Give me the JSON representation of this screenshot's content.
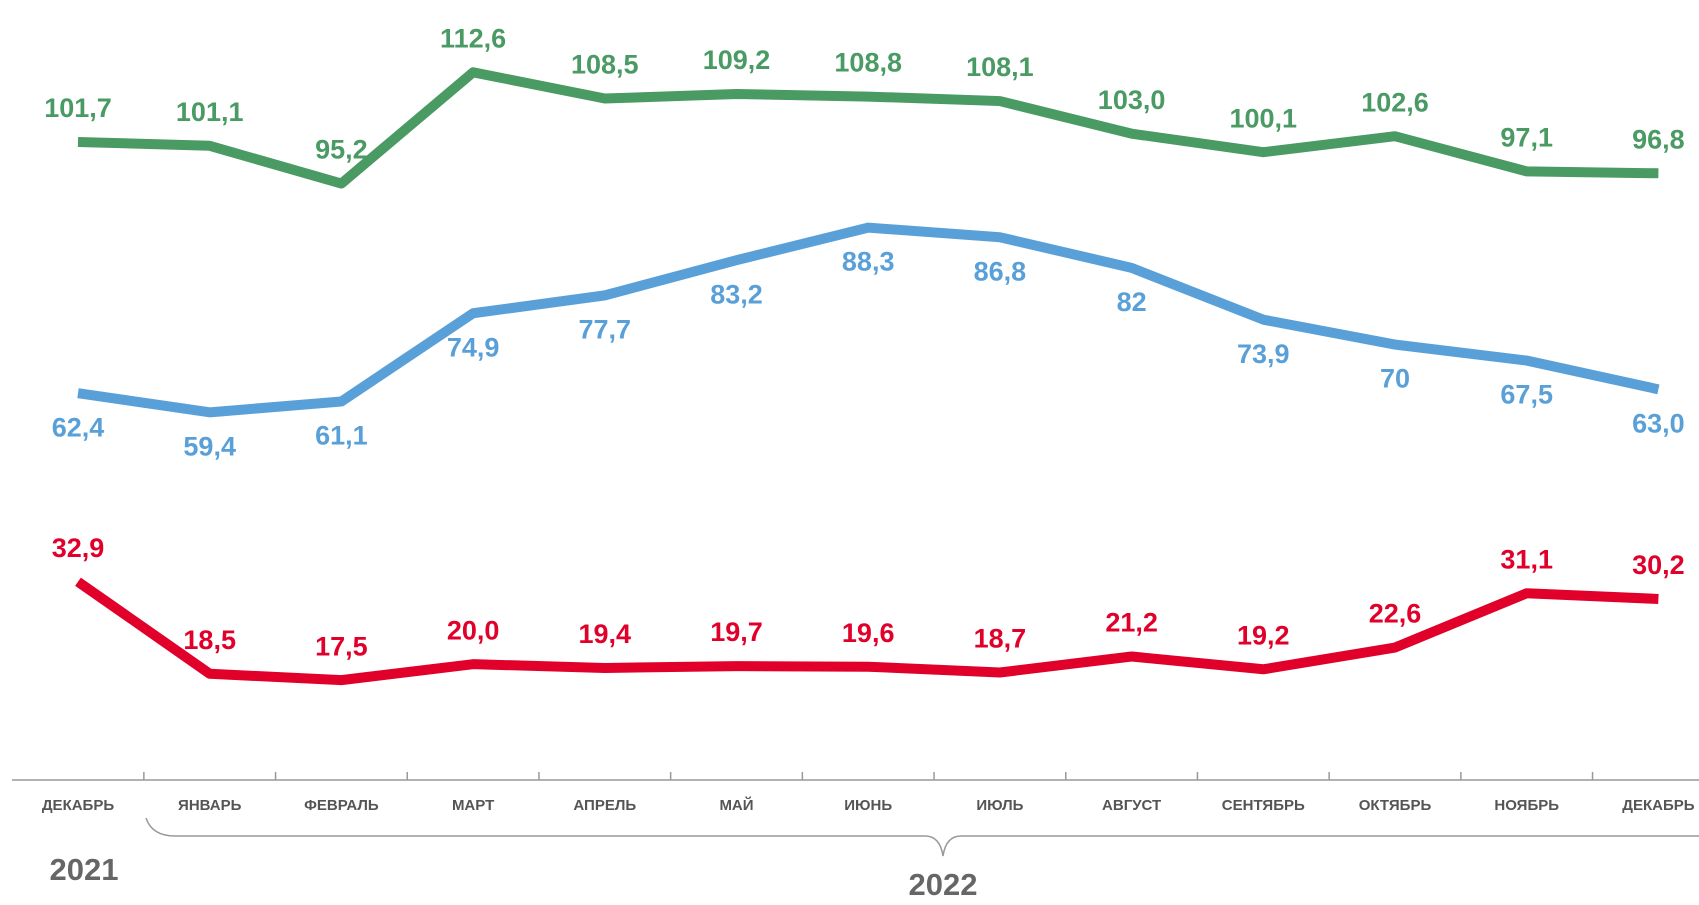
{
  "chart_data": {
    "type": "line",
    "categories": [
      "ДЕКАБРЬ",
      "ЯНВАРЬ",
      "ФЕВРАЛЬ",
      "МАРТ",
      "АПРЕЛЬ",
      "МАЙ",
      "ИЮНЬ",
      "ИЮЛЬ",
      "АВГУСТ",
      "СЕНТЯБРЬ",
      "ОКТЯБРЬ",
      "НОЯБРЬ",
      "ДЕКАБРЬ"
    ],
    "year_labels": [
      "2021",
      "2022"
    ],
    "ylim": [
      0,
      120
    ],
    "series": [
      {
        "color": "#4a9a64",
        "label_position": "above",
        "values": [
          101.7,
          101.1,
          95.2,
          112.6,
          108.5,
          109.2,
          108.8,
          108.1,
          103.0,
          100.1,
          102.6,
          97.1,
          96.8
        ],
        "value_labels": [
          "101,7",
          "101,1",
          "95,2",
          "112,6",
          "108,5",
          "109,2",
          "108,8",
          "108,1",
          "103,0",
          "100,1",
          "102,6",
          "97,1",
          "96,8"
        ]
      },
      {
        "color": "#5aa0d8",
        "label_position": "below",
        "values": [
          62.4,
          59.4,
          61.1,
          74.9,
          77.7,
          83.2,
          88.3,
          86.8,
          82,
          73.9,
          70,
          67.5,
          63.0
        ],
        "value_labels": [
          "62,4",
          "59,4",
          "61,1",
          "74,9",
          "77,7",
          "83,2",
          "88,3",
          "86,8",
          "82",
          "73,9",
          "70",
          "67,5",
          "63,0"
        ]
      },
      {
        "color": "#e0002a",
        "label_position": "above",
        "values": [
          32.9,
          18.5,
          17.5,
          20.0,
          19.4,
          19.7,
          19.6,
          18.7,
          21.2,
          19.2,
          22.6,
          31.1,
          30.2
        ],
        "value_labels": [
          "32,9",
          "18,5",
          "17,5",
          "20,0",
          "19,4",
          "19,7",
          "19,6",
          "18,7",
          "21,2",
          "19,2",
          "22,6",
          "31,1",
          "30,2"
        ]
      }
    ]
  }
}
